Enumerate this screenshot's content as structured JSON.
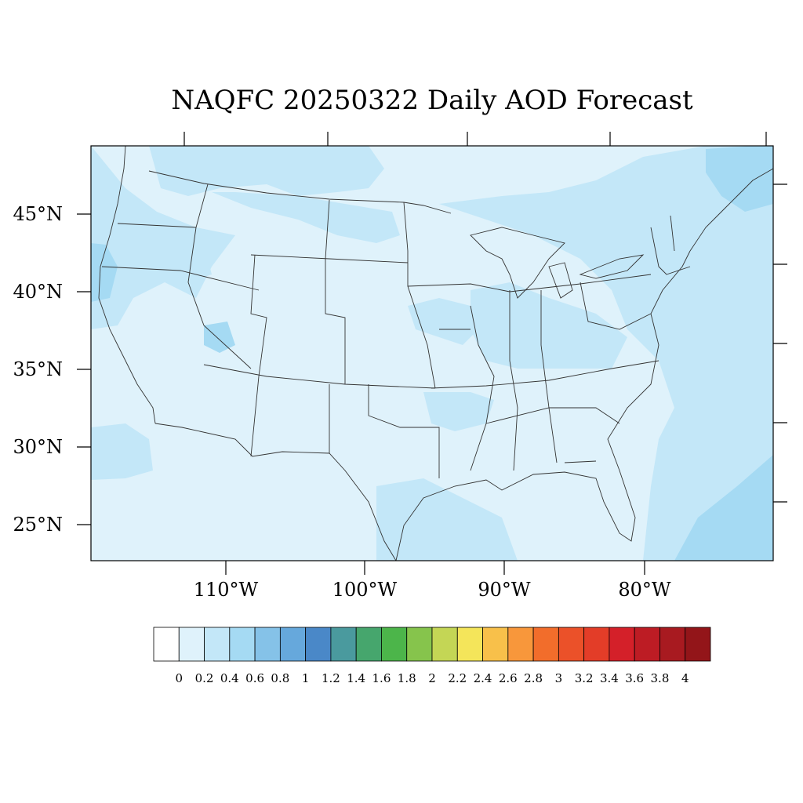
{
  "title": "NAQFC 20250322 Daily AOD Forecast",
  "map": {
    "lat_labels": [
      "45°N",
      "40°N",
      "35°N",
      "30°N",
      "25°N"
    ],
    "lon_labels": [
      "110°W",
      "100°W",
      "90°W",
      "80°W"
    ],
    "colors": {
      "background_field": "#dff2fb",
      "field_level_2": "#c3e7f8",
      "field_level_3": "#a5daf3",
      "borders": "#333333"
    }
  },
  "colorbar": {
    "labels": [
      "0",
      "0.2",
      "0.4",
      "0.6",
      "0.8",
      "1",
      "1.2",
      "1.4",
      "1.6",
      "1.8",
      "2",
      "2.2",
      "2.4",
      "2.6",
      "2.8",
      "3",
      "3.2",
      "3.4",
      "3.6",
      "3.8",
      "4"
    ],
    "colors": [
      "#ffffff",
      "#dff2fb",
      "#c3e7f8",
      "#a5daf3",
      "#85c2e8",
      "#66a8dc",
      "#4a88c8",
      "#4a9a9e",
      "#46a66d",
      "#4cb54a",
      "#86c44c",
      "#c4d655",
      "#f4e55a",
      "#f8c04a",
      "#f8973b",
      "#f26d2b",
      "#eb5129",
      "#e33d28",
      "#d42029",
      "#bd1c24",
      "#a81a20",
      "#931519"
    ]
  }
}
